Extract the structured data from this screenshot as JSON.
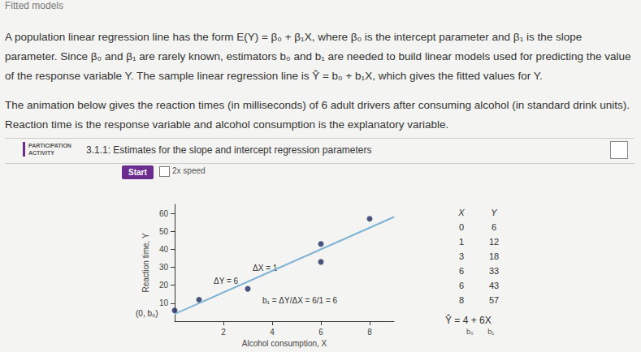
{
  "header": "Fitted models",
  "paragraphs": [
    "A population linear regression line has the form E(Y) = β₀ + β₁X, where β₀ is the intercept parameter and β₁ is the slope parameter. Since β₀ and β₁ are rarely known, estimators b₀ and b₁ are needed to build linear models used for predicting the value of the response variable Y. The sample linear regression line is Ŷ = b₀ + b₁X, which gives the fitted values for Y.",
    "The animation below gives the reaction times (in milliseconds) of 6 adult drivers after consuming alcohol (in standard drink units). Reaction time is the response variable and alcohol consumption is the explanatory variable."
  ],
  "activity": {
    "label": "PARTICIPATION ACTIVITY",
    "title": "3.1.1: Estimates for the slope and intercept regression parameters"
  },
  "controls": {
    "start": "Start",
    "speed": "2x speed"
  },
  "chart_data": {
    "type": "scatter",
    "x_label": "Alcohol consumption, X",
    "y_label": "Reaction time, Y",
    "x": [
      0,
      1,
      3,
      6,
      6,
      8
    ],
    "values": [
      6,
      12,
      18,
      33,
      43,
      57
    ],
    "color": "#1f2a5c",
    "fit": {
      "intercept": 4,
      "slope": 6,
      "color": "#7fb3d5"
    },
    "xlim": [
      0,
      9
    ],
    "xticks": [
      2,
      4,
      6,
      8
    ],
    "ylim": [
      0,
      65
    ],
    "yticks": [
      10,
      20,
      30,
      40,
      50,
      60
    ],
    "grid": false,
    "annotations": {
      "intercept": "(0, b₀)",
      "dx": "ΔX = 1",
      "dy": "ΔY = 6",
      "slope": "b₁ = ΔY/ΔX = 6/1 = 6"
    },
    "table": {
      "columns": [
        "X",
        "Y"
      ],
      "equation": "Ŷ = 4 + 6X",
      "equation_labels": [
        "b₀",
        "b₁"
      ]
    }
  }
}
